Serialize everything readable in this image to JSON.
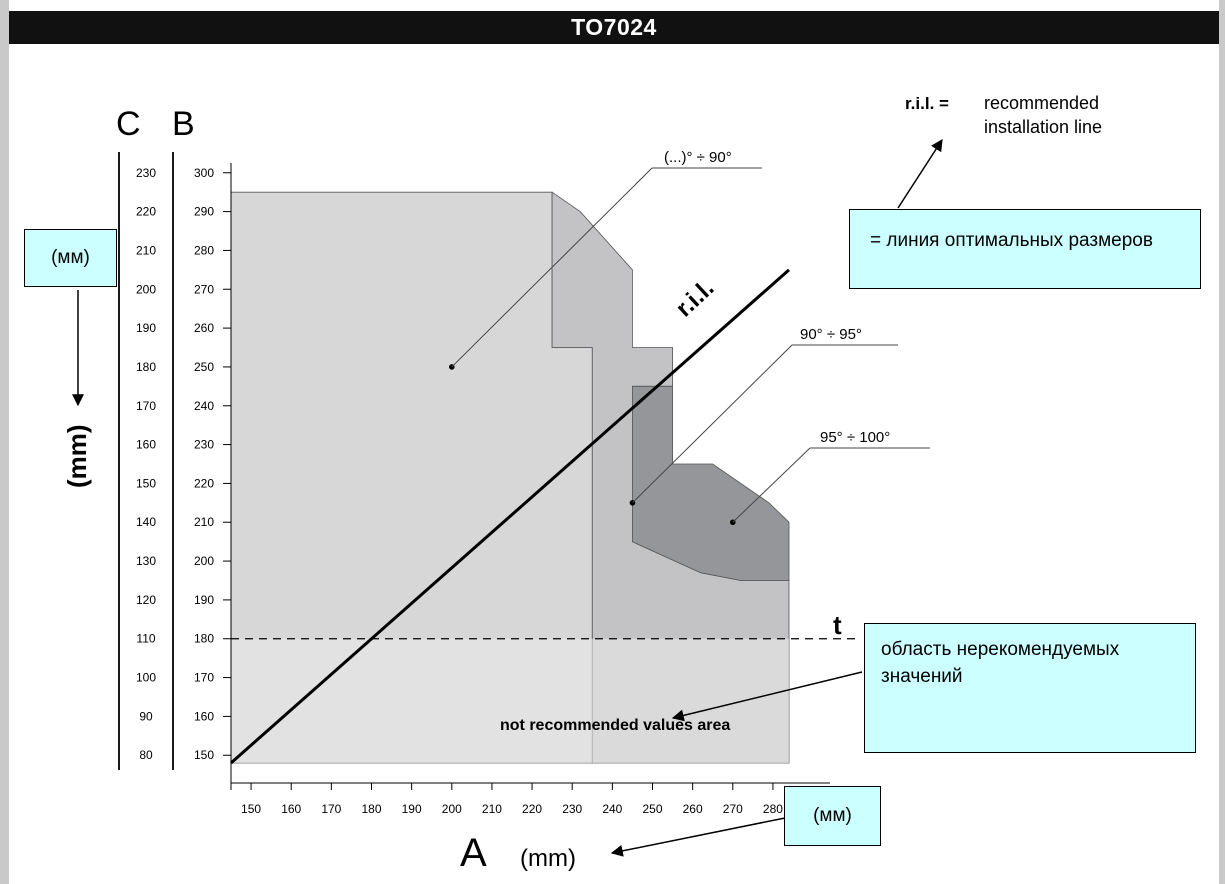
{
  "header": {
    "title": "TO7024"
  },
  "legend": {
    "ril_key": "r.i.l. =",
    "ril_line1": "recommended",
    "ril_line2": "installation line"
  },
  "callouts": {
    "ril_translation": "= линия оптимальных размеров",
    "mm_left": "(мм)",
    "mm_bottom": "(мм)",
    "not_recommended_translation": "область нерекомендуемых значений"
  },
  "chart_data": {
    "type": "area",
    "axis_letters": {
      "c": "C",
      "b": "B",
      "a": "A"
    },
    "ylabel": "(mm)",
    "xlabel": "(mm)",
    "x_ticks": [
      150,
      160,
      170,
      180,
      190,
      200,
      210,
      220,
      230,
      240,
      250,
      260,
      270,
      280
    ],
    "xlim": [
      145,
      285
    ],
    "b_ticks": [
      150,
      160,
      170,
      180,
      190,
      200,
      210,
      220,
      230,
      240,
      250,
      260,
      270,
      280,
      290,
      300
    ],
    "ylim_b": [
      148,
      302
    ],
    "c_ticks": [
      80,
      90,
      100,
      110,
      120,
      130,
      140,
      150,
      160,
      170,
      180,
      190,
      200,
      210,
      220,
      230
    ],
    "regions": [
      {
        "name": "(...)° ÷ 90°",
        "color": "#d7d7d8",
        "points": [
          [
            145,
            148
          ],
          [
            145,
            295
          ],
          [
            225,
            295
          ],
          [
            225,
            255
          ],
          [
            235,
            255
          ],
          [
            235,
            148
          ]
        ]
      },
      {
        "name": "90° ÷ 95°",
        "color": "#c3c3c6",
        "points": [
          [
            225,
            295
          ],
          [
            232,
            290
          ],
          [
            245,
            275
          ],
          [
            245,
            255
          ],
          [
            255,
            255
          ],
          [
            255,
            245
          ],
          [
            245,
            245
          ],
          [
            245,
            205
          ],
          [
            262,
            197
          ],
          [
            272,
            195
          ],
          [
            284,
            195
          ],
          [
            284,
            148
          ],
          [
            235,
            148
          ],
          [
            235,
            255
          ],
          [
            225,
            255
          ]
        ]
      },
      {
        "name": "95° ÷ 100°",
        "color": "#94969a",
        "points": [
          [
            245,
            245
          ],
          [
            255,
            245
          ],
          [
            255,
            225
          ],
          [
            265,
            225
          ],
          [
            279,
            215
          ],
          [
            284,
            210
          ],
          [
            284,
            195
          ],
          [
            272,
            195
          ],
          [
            262,
            197
          ],
          [
            245,
            205
          ]
        ]
      }
    ],
    "region_labels": [
      {
        "text": "(...)° ÷ 90°",
        "dot": [
          200,
          250
        ]
      },
      {
        "text": "90° ÷ 95°",
        "dot": [
          245,
          215
        ]
      },
      {
        "text": "95° ÷ 100°",
        "dot": [
          270,
          210
        ]
      }
    ],
    "not_recommended": {
      "below_b": 180,
      "label": "not recommended values area",
      "tint": "#e9e9e9"
    },
    "t_line": {
      "b": 180,
      "label": "t"
    },
    "ril_line": {
      "label": "r.i.l.",
      "from": [
        145,
        148
      ],
      "to": [
        284,
        275
      ]
    }
  }
}
